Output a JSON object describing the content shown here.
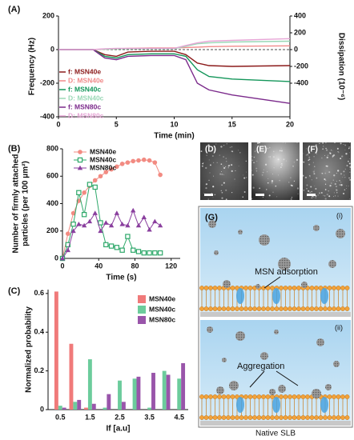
{
  "chart_data": [
    {
      "type": "line",
      "panel_label": "(A)",
      "x_label": "Time (min)",
      "y_label": "Frequency (Hz)",
      "y2_label": "Dissipation (10⁻⁶)",
      "x": [
        0,
        3,
        4,
        5,
        6,
        8,
        10,
        11,
        12,
        13,
        15,
        20
      ],
      "xlim": [
        0,
        20
      ],
      "xticks": [
        0,
        5,
        10,
        15,
        20
      ],
      "ylim": [
        -400,
        200
      ],
      "yticks": [
        -400,
        -200,
        0,
        200
      ],
      "y2lim": [
        -800,
        400
      ],
      "y2ticks": [
        -400,
        -200,
        0,
        200,
        400
      ],
      "series": [
        {
          "name": "f: MSN40e",
          "color": "#8b1a1a",
          "values": [
            0,
            0,
            -30,
            -40,
            -15,
            -10,
            -10,
            -30,
            -80,
            -95,
            -100,
            -95
          ]
        },
        {
          "name": "D: MSN40e",
          "color": "#f08a8a",
          "axis": "y2",
          "values": [
            0,
            0,
            5,
            10,
            15,
            20,
            20,
            25,
            30,
            35,
            40,
            45
          ]
        },
        {
          "name": "f: MSN40c",
          "color": "#14965a",
          "values": [
            0,
            0,
            -40,
            -50,
            -30,
            -25,
            -25,
            -40,
            -120,
            -160,
            -175,
            -190
          ]
        },
        {
          "name": "D: MSN40c",
          "color": "#9ad8b6",
          "axis": "y2",
          "values": [
            0,
            0,
            5,
            10,
            10,
            10,
            10,
            40,
            70,
            80,
            90,
            100
          ]
        },
        {
          "name": "f: MSN80c",
          "color": "#7b2a8b",
          "values": [
            0,
            0,
            -50,
            -60,
            -40,
            -35,
            -35,
            -60,
            -200,
            -240,
            -270,
            -320
          ]
        },
        {
          "name": "D: MSN80c",
          "color": "#e6a6d6",
          "axis": "y2",
          "values": [
            0,
            0,
            10,
            15,
            15,
            15,
            15,
            50,
            80,
            100,
            110,
            130
          ]
        }
      ]
    },
    {
      "type": "line",
      "panel_label": "(B)",
      "x_label": "Time (s)",
      "y_label": [
        "Number of firmly attached",
        "particles (per 100 μm²)"
      ],
      "x": [
        0,
        6,
        12,
        18,
        24,
        30,
        36,
        42,
        48,
        54,
        60,
        66,
        72,
        78,
        84,
        90,
        96,
        102,
        108
      ],
      "xlim": [
        0,
        130
      ],
      "xticks": [
        0,
        40,
        80,
        120
      ],
      "ylim": [
        0,
        800
      ],
      "yticks": [
        0,
        200,
        400,
        600,
        800
      ],
      "series": [
        {
          "name": "MSN40e",
          "color": "#f28b82",
          "marker": "circle",
          "values": [
            0,
            180,
            330,
            420,
            480,
            530,
            570,
            600,
            630,
            650,
            670,
            690,
            700,
            710,
            715,
            720,
            715,
            700,
            610
          ]
        },
        {
          "name": "MSN40c",
          "color": "#2ea86a",
          "marker": "square",
          "values": [
            0,
            100,
            250,
            480,
            320,
            540,
            520,
            260,
            100,
            90,
            80,
            60,
            160,
            60,
            50,
            40,
            40,
            40,
            40
          ]
        },
        {
          "name": "MSN80c",
          "color": "#8a3f9e",
          "marker": "triangle",
          "values": [
            0,
            60,
            200,
            250,
            240,
            270,
            330,
            200,
            260,
            240,
            330,
            250,
            240,
            350,
            240,
            300,
            210,
            270,
            240
          ]
        }
      ]
    },
    {
      "type": "bar",
      "panel_label": "(C)",
      "x_label": "If [a.u]",
      "y_label": "Normalized probability",
      "categories": [
        "0.5",
        null,
        "1.5",
        null,
        "2.5",
        null,
        "3.5",
        null,
        "4.5"
      ],
      "ylim": [
        0,
        0.62
      ],
      "yticks": [
        0,
        0.2,
        0.4,
        0.6
      ],
      "series": [
        {
          "name": "MSN40e",
          "color": "#f07a7a",
          "values": [
            0.61,
            0.34,
            0.01,
            0,
            0,
            0,
            0,
            0,
            0
          ]
        },
        {
          "name": "MSN40c",
          "color": "#6ccc9c",
          "values": [
            0.02,
            0.04,
            0.26,
            0.01,
            0.15,
            0.16,
            0.01,
            0.2,
            0.16
          ]
        },
        {
          "name": "MSN80c",
          "color": "#9955aa",
          "values": [
            0.01,
            0.05,
            0.03,
            0.08,
            0.04,
            0.17,
            0.19,
            0.18,
            0.24
          ]
        }
      ]
    }
  ],
  "micrographs": {
    "labels": [
      "(D)",
      "(E)",
      "(F)"
    ]
  },
  "schematic": {
    "label": "(G)",
    "panels": [
      {
        "label": "(i)",
        "caption": "MSN adsorption"
      },
      {
        "label": "(ii)",
        "caption": "Aggregation"
      }
    ],
    "footer": "Native SLB"
  }
}
